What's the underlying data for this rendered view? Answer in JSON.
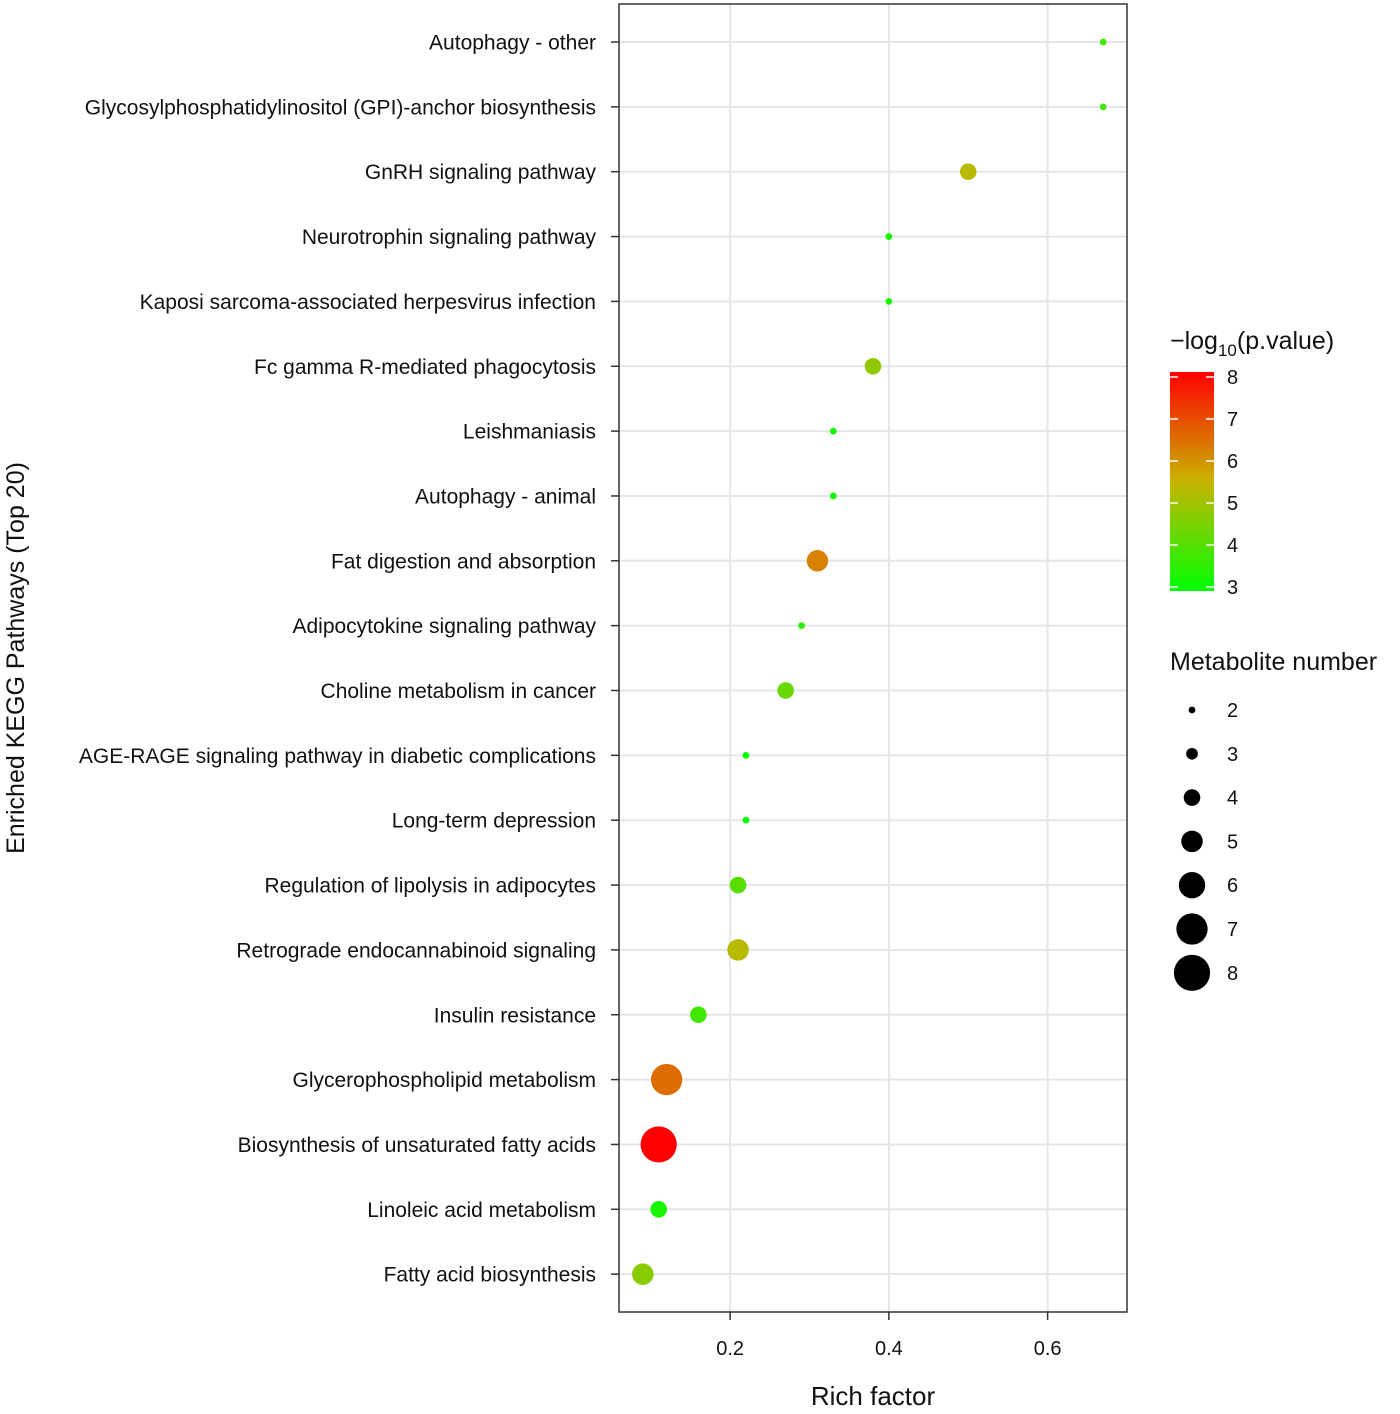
{
  "chart_data": {
    "type": "scatter",
    "title": "",
    "xlabel": "Rich factor",
    "ylabel": "Enriched KEGG Pathways (Top 20)",
    "xlim": [
      0.06,
      0.7
    ],
    "x_ticks": [
      0.2,
      0.4,
      0.6
    ],
    "x_tick_labels": [
      "0.2",
      "0.4",
      "0.6"
    ],
    "grid": true,
    "pathways": [
      {
        "name": "Autophagy - other",
        "rich_factor": 0.67,
        "metabolite_number": 2,
        "neg_log10_p": 3.8
      },
      {
        "name": "Glycosylphosphatidylinositol (GPI)-anchor biosynthesis",
        "rich_factor": 0.67,
        "metabolite_number": 2,
        "neg_log10_p": 3.8
      },
      {
        "name": "GnRH signaling pathway",
        "rich_factor": 0.5,
        "metabolite_number": 4,
        "neg_log10_p": 5.3
      },
      {
        "name": "Neurotrophin signaling pathway",
        "rich_factor": 0.4,
        "metabolite_number": 2,
        "neg_log10_p": 3.3
      },
      {
        "name": "Kaposi sarcoma-associated herpesvirus infection",
        "rich_factor": 0.4,
        "metabolite_number": 2,
        "neg_log10_p": 3.3
      },
      {
        "name": "Fc gamma R-mediated phagocytosis",
        "rich_factor": 0.38,
        "metabolite_number": 4,
        "neg_log10_p": 4.8
      },
      {
        "name": "Leishmaniasis",
        "rich_factor": 0.33,
        "metabolite_number": 2,
        "neg_log10_p": 3.2
      },
      {
        "name": "Autophagy - animal",
        "rich_factor": 0.33,
        "metabolite_number": 2,
        "neg_log10_p": 3.2
      },
      {
        "name": "Fat digestion and absorption",
        "rich_factor": 0.31,
        "metabolite_number": 5,
        "neg_log10_p": 6.2
      },
      {
        "name": "Adipocytokine signaling pathway",
        "rich_factor": 0.29,
        "metabolite_number": 2,
        "neg_log10_p": 3.5
      },
      {
        "name": "Choline metabolism in cancer",
        "rich_factor": 0.27,
        "metabolite_number": 4,
        "neg_log10_p": 4.3
      },
      {
        "name": "AGE-RAGE signaling pathway in diabetic complications",
        "rich_factor": 0.22,
        "metabolite_number": 2,
        "neg_log10_p": 3.0
      },
      {
        "name": "Long-term depression",
        "rich_factor": 0.22,
        "metabolite_number": 2,
        "neg_log10_p": 3.0
      },
      {
        "name": "Regulation of lipolysis in adipocytes",
        "rich_factor": 0.21,
        "metabolite_number": 4,
        "neg_log10_p": 4.1
      },
      {
        "name": "Retrograde endocannabinoid signaling",
        "rich_factor": 0.21,
        "metabolite_number": 5,
        "neg_log10_p": 5.3
      },
      {
        "name": "Insulin resistance",
        "rich_factor": 0.16,
        "metabolite_number": 4,
        "neg_log10_p": 3.8
      },
      {
        "name": "Glycerophospholipid metabolism",
        "rich_factor": 0.12,
        "metabolite_number": 7,
        "neg_log10_p": 6.5
      },
      {
        "name": "Biosynthesis of unsaturated fatty acids",
        "rich_factor": 0.11,
        "metabolite_number": 8,
        "neg_log10_p": 8.0
      },
      {
        "name": "Linoleic acid metabolism",
        "rich_factor": 0.11,
        "metabolite_number": 4,
        "neg_log10_p": 3.3
      },
      {
        "name": "Fatty acid biosynthesis",
        "rich_factor": 0.09,
        "metabolite_number": 5,
        "neg_log10_p": 4.7
      }
    ],
    "color_legend": {
      "title_prefix": "−log",
      "title_subscript": "10",
      "title_suffix": "(p.value)",
      "min": 3,
      "max": 8,
      "ticks": [
        8,
        7,
        6,
        5,
        4,
        3
      ],
      "tick_labels": [
        "8",
        "7",
        "6",
        "5",
        "4",
        "3"
      ],
      "color_low": "#00ff00",
      "color_mid": "#c8b400",
      "color_high": "#ff0000"
    },
    "size_legend": {
      "title": "Metabolite number",
      "values": [
        2,
        3,
        4,
        5,
        6,
        7,
        8
      ],
      "labels": [
        "2",
        "3",
        "4",
        "5",
        "6",
        "7",
        "8"
      ],
      "color": "#000000"
    },
    "style": {
      "panel_border": "#333333",
      "grid_color": "#e6e6e6",
      "background": "#ffffff"
    }
  }
}
